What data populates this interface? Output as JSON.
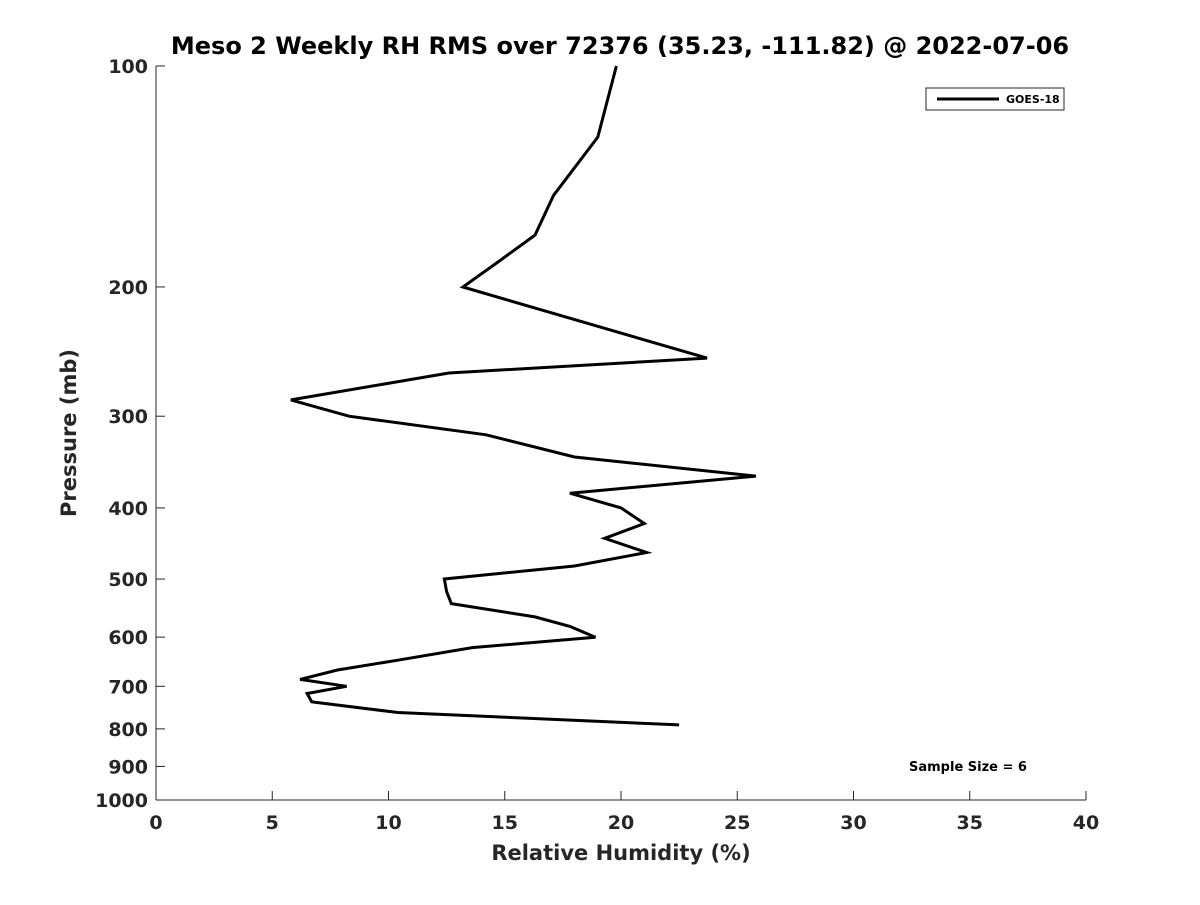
{
  "chart_data": {
    "type": "line",
    "title": "Meso 2 Weekly RH RMS over 72376 (35.23, -111.82) @ 2022-07-06",
    "xlabel": "Relative Humidity (%)",
    "ylabel": "Pressure (mb)",
    "xlim": [
      0,
      40
    ],
    "ylim": [
      100,
      1000
    ],
    "yscale": "log",
    "y_reversed": true,
    "grid": false,
    "x_ticks": [
      "0",
      "5",
      "10",
      "15",
      "20",
      "25",
      "30",
      "35",
      "40"
    ],
    "y_ticks": [
      "100",
      "200",
      "300",
      "400",
      "500",
      "600",
      "700",
      "800",
      "900",
      "1000"
    ],
    "legend_position": "top-right",
    "annotation": "Sample Size = 6",
    "series": [
      {
        "name": "GOES-18",
        "color": "#000000",
        "points": [
          {
            "x": 19.8,
            "y": 100
          },
          {
            "x": 19.0,
            "y": 125
          },
          {
            "x": 17.1,
            "y": 150
          },
          {
            "x": 16.3,
            "y": 170
          },
          {
            "x": 14.7,
            "y": 185
          },
          {
            "x": 13.2,
            "y": 200
          },
          {
            "x": 23.7,
            "y": 250
          },
          {
            "x": 12.6,
            "y": 262
          },
          {
            "x": 5.8,
            "y": 285
          },
          {
            "x": 8.3,
            "y": 300
          },
          {
            "x": 14.2,
            "y": 318
          },
          {
            "x": 18.0,
            "y": 341
          },
          {
            "x": 25.8,
            "y": 362
          },
          {
            "x": 17.8,
            "y": 382
          },
          {
            "x": 20.0,
            "y": 400
          },
          {
            "x": 21.0,
            "y": 420
          },
          {
            "x": 19.3,
            "y": 440
          },
          {
            "x": 21.1,
            "y": 460
          },
          {
            "x": 18.0,
            "y": 480
          },
          {
            "x": 12.4,
            "y": 500
          },
          {
            "x": 12.5,
            "y": 520
          },
          {
            "x": 12.7,
            "y": 540
          },
          {
            "x": 16.3,
            "y": 563
          },
          {
            "x": 17.8,
            "y": 580
          },
          {
            "x": 18.9,
            "y": 600
          },
          {
            "x": 13.6,
            "y": 620
          },
          {
            "x": 10.4,
            "y": 645
          },
          {
            "x": 7.8,
            "y": 665
          },
          {
            "x": 6.2,
            "y": 685
          },
          {
            "x": 8.2,
            "y": 700
          },
          {
            "x": 6.5,
            "y": 716
          },
          {
            "x": 6.7,
            "y": 735
          },
          {
            "x": 10.4,
            "y": 760
          },
          {
            "x": 22.5,
            "y": 790
          }
        ]
      }
    ]
  }
}
